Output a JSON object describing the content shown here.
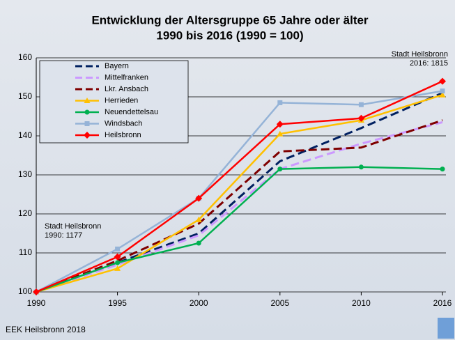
{
  "chart_data": {
    "type": "line",
    "title": [
      "Entwicklung der Altersgruppe 65 Jahre oder älter",
      "1990 bis 2016 (1990 = 100)"
    ],
    "categories": [
      "1990",
      "1995",
      "2000",
      "2005",
      "2010",
      "2016"
    ],
    "series": [
      {
        "name": "Bayern",
        "color": "#002060",
        "dash": true,
        "marker": "none",
        "values": [
          100,
          107.5,
          115,
          133.5,
          142,
          151
        ]
      },
      {
        "name": "Mittelfranken",
        "color": "#cc99ff",
        "dash": true,
        "marker": "none",
        "values": [
          100,
          107,
          114.5,
          131.5,
          138,
          143.5
        ]
      },
      {
        "name": "Lkr. Ansbach",
        "color": "#7f0000",
        "dash": true,
        "marker": "none",
        "values": [
          100,
          108,
          117.5,
          136,
          137,
          144
        ]
      },
      {
        "name": "Herrieden",
        "color": "#ffc000",
        "dash": false,
        "marker": "triangle",
        "values": [
          100,
          106,
          118.5,
          140.5,
          144,
          150.5
        ]
      },
      {
        "name": "Neuendettelsau",
        "color": "#00b050",
        "dash": false,
        "marker": "circle",
        "values": [
          100,
          107.5,
          112.5,
          131.5,
          132,
          131.5
        ]
      },
      {
        "name": "Windsbach",
        "color": "#95b3d7",
        "dash": false,
        "marker": "square",
        "values": [
          100,
          111,
          124,
          148.5,
          148,
          151.5
        ]
      },
      {
        "name": "Heilsbronn",
        "color": "#ff0000",
        "dash": false,
        "marker": "diamond",
        "values": [
          100,
          109,
          124,
          143,
          144.5,
          154
        ]
      }
    ],
    "ylim": [
      100,
      160
    ],
    "yticks": [
      100,
      110,
      120,
      130,
      140,
      150,
      160
    ],
    "grid": true,
    "legend": "upper left",
    "annotations": [
      {
        "lines": [
          "Stadt Heilsbronn",
          "1990: 1177"
        ]
      },
      {
        "lines": [
          "Stadt Heilsbronn",
          "2016: 1815"
        ]
      }
    ],
    "source": "EEK Heilsbronn 2018"
  }
}
